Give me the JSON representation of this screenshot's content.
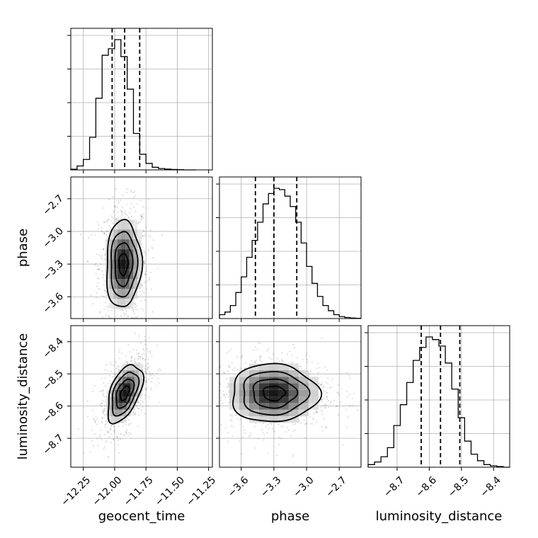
{
  "chart_data": {
    "type": "corner",
    "parameters": [
      "geocent_time",
      "phase",
      "luminosity_distance"
    ],
    "axes": {
      "geocent_time": {
        "label": "geocent_time",
        "range": [
          -12.35,
          -11.22
        ],
        "ticks": [
          -12.25,
          -12.0,
          -11.75,
          -11.5,
          -11.25
        ],
        "tick_labels": [
          "−12.25",
          "−12.00",
          "−11.75",
          "−11.50",
          "−11.25"
        ]
      },
      "phase": {
        "label": "phase",
        "range": [
          -3.8,
          -2.5
        ],
        "ticks": [
          -3.6,
          -3.3,
          -3.0,
          -2.7
        ],
        "tick_labels": [
          "−3.6",
          "−3.3",
          "−3.0",
          "−2.7"
        ]
      },
      "luminosity_distance": {
        "label": "luminosity_distance",
        "range": [
          -8.79,
          -8.35
        ],
        "ticks": [
          -8.7,
          -8.6,
          -8.5,
          -8.4
        ],
        "tick_labels": [
          "−8.7",
          "−8.6",
          "−8.5",
          "−8.4"
        ]
      }
    },
    "histograms": [
      {
        "parameter": "geocent_time",
        "bins": [
          -12.35,
          -12.3,
          -12.25,
          -12.2,
          -12.15,
          -12.1,
          -12.05,
          -12.0,
          -11.95,
          -11.9,
          -11.85,
          -11.8,
          -11.75,
          -11.7,
          -11.65,
          -11.6,
          -11.55,
          -11.5,
          -11.45,
          -11.4,
          -11.35
        ],
        "counts": [
          0.005,
          0.03,
          0.08,
          0.25,
          0.55,
          0.88,
          0.93,
          1.0,
          0.87,
          0.62,
          0.28,
          0.12,
          0.05,
          0.02,
          0.01,
          0.006,
          0.003,
          0.002,
          0.0,
          0.0
        ],
        "quantiles": [
          -12.02,
          -11.92,
          -11.8
        ]
      },
      {
        "parameter": "phase",
        "bins": [
          -3.8,
          -3.75,
          -3.7,
          -3.65,
          -3.6,
          -3.55,
          -3.5,
          -3.45,
          -3.4,
          -3.35,
          -3.3,
          -3.25,
          -3.2,
          -3.15,
          -3.1,
          -3.05,
          -3.0,
          -2.95,
          -2.9,
          -2.85,
          -2.8,
          -2.75,
          -2.7,
          -2.65,
          -2.6,
          -2.55,
          -2.5
        ],
        "counts": [
          0.03,
          0.05,
          0.1,
          0.2,
          0.32,
          0.47,
          0.6,
          0.74,
          0.88,
          0.96,
          1.0,
          0.99,
          0.94,
          0.86,
          0.74,
          0.58,
          0.4,
          0.27,
          0.17,
          0.1,
          0.06,
          0.03,
          0.015,
          0.008,
          0.004,
          0.002
        ],
        "quantiles": [
          -3.47,
          -3.3,
          -3.09
        ]
      },
      {
        "parameter": "luminosity_distance",
        "bins": [
          -8.79,
          -8.77,
          -8.75,
          -8.73,
          -8.71,
          -8.69,
          -8.67,
          -8.65,
          -8.63,
          -8.61,
          -8.59,
          -8.57,
          -8.55,
          -8.53,
          -8.51,
          -8.49,
          -8.47,
          -8.45,
          -8.43,
          -8.41,
          -8.39,
          -8.37,
          -8.35
        ],
        "counts": [
          0.02,
          0.04,
          0.08,
          0.15,
          0.32,
          0.48,
          0.65,
          0.82,
          0.92,
          1.0,
          0.98,
          0.93,
          0.8,
          0.6,
          0.38,
          0.2,
          0.1,
          0.05,
          0.02,
          0.01,
          0.005,
          0.0
        ],
        "quantiles": [
          -8.625,
          -8.565,
          -8.505
        ]
      }
    ],
    "joint": [
      {
        "x": "geocent_time",
        "y": "phase",
        "center": [
          -11.93,
          -3.3
        ],
        "sigma": [
          0.07,
          0.2
        ],
        "rho": 0.05
      },
      {
        "x": "geocent_time",
        "y": "luminosity_distance",
        "center": [
          -11.92,
          -8.56
        ],
        "sigma": [
          0.07,
          0.045
        ],
        "rho": 0.5
      },
      {
        "x": "phase",
        "y": "luminosity_distance",
        "center": [
          -3.3,
          -8.56
        ],
        "sigma": [
          0.2,
          0.045
        ],
        "rho": 0.0
      }
    ],
    "grid": true
  }
}
